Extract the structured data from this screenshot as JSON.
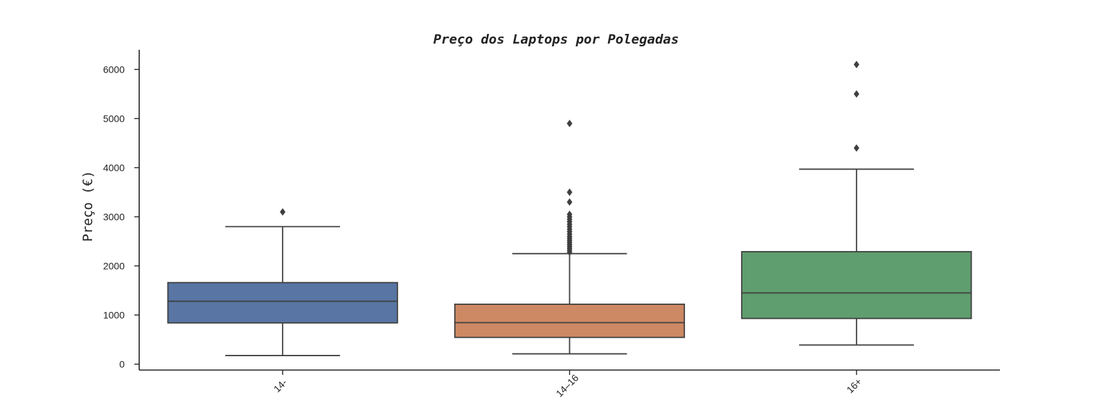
{
  "chart_data": {
    "type": "box",
    "title": "Preço dos Laptops por Polegadas",
    "xlabel": "",
    "ylabel": "Preço (€)",
    "ylim": [
      -120,
      6400
    ],
    "yticks": [
      0,
      1000,
      2000,
      3000,
      4000,
      5000,
      6000
    ],
    "categories": [
      "14-",
      "14–16",
      "16+"
    ],
    "boxes": [
      {
        "category": "14-",
        "color": "#5875a4",
        "whisker_low": 175,
        "q1": 840,
        "median": 1280,
        "q3": 1660,
        "whisker_high": 2800,
        "outliers": [
          3100
        ]
      },
      {
        "category": "14–16",
        "color": "#cc8963",
        "whisker_low": 210,
        "q1": 545,
        "median": 845,
        "q3": 1220,
        "whisker_high": 2250,
        "outliers": [
          2280,
          2320,
          2360,
          2400,
          2440,
          2480,
          2520,
          2560,
          2600,
          2650,
          2700,
          2750,
          2800,
          2850,
          2900,
          2950,
          3000,
          3050,
          3300,
          3500,
          4900
        ]
      },
      {
        "category": "16+",
        "color": "#5f9e6e",
        "whisker_low": 390,
        "q1": 930,
        "median": 1450,
        "q3": 2290,
        "whisker_high": 3970,
        "outliers": [
          4400,
          5500,
          6100
        ]
      }
    ]
  }
}
